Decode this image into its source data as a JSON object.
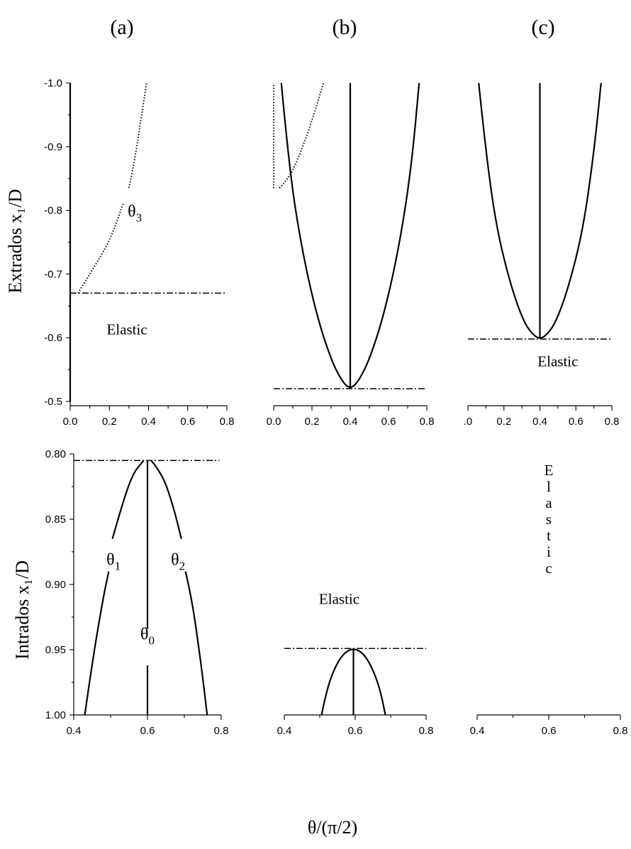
{
  "figure": {
    "xlabel": "θ/(π/2)",
    "ylabel_top": "Extrados   x₁/D",
    "ylabel_bottom": "Intrados   x₁/D"
  },
  "chart_data": [
    {
      "id": "a-top",
      "type": "line",
      "title": "(a)",
      "xlim": [
        0,
        0.8
      ],
      "xticks": [
        "0.0",
        "0.2",
        "0.4",
        "0.6",
        "0.8"
      ],
      "ylim": [
        -1.0,
        -0.5
      ],
      "yticks": [
        "-1.0",
        "-0.9",
        "-0.8",
        "-0.7",
        "-0.6",
        "-0.5"
      ],
      "show_y_axis": true,
      "annotations": [
        {
          "text": "θ",
          "sub": "3",
          "x": 0.33,
          "y": -0.79
        },
        {
          "text": "Elastic",
          "x": 0.29,
          "y": -0.605
        }
      ],
      "series": [
        {
          "style": "solid",
          "points": [
            [
              0,
              -1.0
            ],
            [
              0,
              -0.5
            ]
          ]
        },
        {
          "style": "dotted",
          "points": [
            [
              0,
              -0.67
            ],
            [
              0,
              -1.0
            ]
          ]
        },
        {
          "style": "dotted",
          "points": [
            [
              0.04,
              -0.67
            ],
            [
              0.1,
              -0.7
            ],
            [
              0.2,
              -0.75
            ],
            [
              0.27,
              -0.81
            ]
          ]
        },
        {
          "style": "dotted",
          "points": [
            [
              0.3,
              -0.835
            ],
            [
              0.33,
              -0.88
            ],
            [
              0.36,
              -0.94
            ],
            [
              0.39,
              -1.0
            ]
          ]
        },
        {
          "style": "dashdot",
          "points": [
            [
              0.0,
              -0.67
            ],
            [
              0.8,
              -0.67
            ]
          ]
        }
      ]
    },
    {
      "id": "b-top",
      "type": "line",
      "title": "(b)",
      "xlim": [
        0,
        0.8
      ],
      "xticks": [
        "0.0",
        "0.2",
        "0.4",
        "0.6",
        "0.8"
      ],
      "ylim": [
        -1.0,
        -0.5
      ],
      "yticks": [],
      "show_y_axis": false,
      "annotations": [],
      "series": [
        {
          "style": "solid",
          "points": [
            [
              0.04,
              -1.0
            ],
            [
              0.08,
              -0.87
            ],
            [
              0.14,
              -0.75
            ],
            [
              0.22,
              -0.64
            ],
            [
              0.3,
              -0.565
            ],
            [
              0.36,
              -0.53
            ],
            [
              0.4,
              -0.52
            ],
            [
              0.44,
              -0.53
            ],
            [
              0.5,
              -0.565
            ],
            [
              0.58,
              -0.64
            ],
            [
              0.66,
              -0.75
            ],
            [
              0.72,
              -0.87
            ],
            [
              0.76,
              -1.0
            ]
          ]
        },
        {
          "style": "solid",
          "points": [
            [
              0.4,
              -0.52
            ],
            [
              0.4,
              -1.0
            ]
          ]
        },
        {
          "style": "dotted",
          "points": [
            [
              0,
              -0.835
            ],
            [
              0,
              -1.0
            ]
          ]
        },
        {
          "style": "dotted",
          "points": [
            [
              0.03,
              -0.835
            ],
            [
              0.08,
              -0.85
            ],
            [
              0.14,
              -0.89
            ],
            [
              0.2,
              -0.94
            ],
            [
              0.26,
              -1.0
            ]
          ]
        },
        {
          "style": "dashdot",
          "points": [
            [
              0.0,
              -0.52
            ],
            [
              0.8,
              -0.52
            ]
          ]
        }
      ]
    },
    {
      "id": "c-top",
      "type": "line",
      "title": "(c)",
      "xlim": [
        0,
        0.8
      ],
      "xticks": [
        ".0",
        "0.2",
        "0.4",
        "0.6",
        "0.8"
      ],
      "ylim": [
        -1.0,
        -0.5
      ],
      "yticks": [],
      "show_y_axis": false,
      "annotations": [
        {
          "text": "Elastic",
          "x": 0.5,
          "y": -0.555
        }
      ],
      "series": [
        {
          "style": "solid",
          "points": [
            [
              0.06,
              -1.0
            ],
            [
              0.1,
              -0.89
            ],
            [
              0.16,
              -0.77
            ],
            [
              0.24,
              -0.68
            ],
            [
              0.31,
              -0.625
            ],
            [
              0.36,
              -0.605
            ],
            [
              0.4,
              -0.598
            ],
            [
              0.44,
              -0.605
            ],
            [
              0.49,
              -0.625
            ],
            [
              0.56,
              -0.68
            ],
            [
              0.64,
              -0.77
            ],
            [
              0.7,
              -0.89
            ],
            [
              0.74,
              -1.0
            ]
          ]
        },
        {
          "style": "solid",
          "points": [
            [
              0.4,
              -0.598
            ],
            [
              0.4,
              -1.0
            ]
          ]
        },
        {
          "style": "dashdot",
          "points": [
            [
              0.0,
              -0.598
            ],
            [
              0.8,
              -0.598
            ]
          ]
        }
      ]
    },
    {
      "id": "a-bottom",
      "type": "line",
      "title": "",
      "xlim": [
        0.4,
        0.8
      ],
      "xticks": [
        "0.4",
        "0.6",
        "0.8"
      ],
      "ylim": [
        0.8,
        1.0
      ],
      "yticks": [
        "0.80",
        "0.85",
        "0.90",
        "0.95",
        "1.00"
      ],
      "show_y_axis": true,
      "annotations": [
        {
          "text": "θ",
          "sub": "1",
          "x": 0.508,
          "y": 0.885
        },
        {
          "text": "θ",
          "sub": "2",
          "x": 0.683,
          "y": 0.885
        },
        {
          "text": "θ",
          "sub": "0",
          "x": 0.6,
          "y": 0.942
        }
      ],
      "series": [
        {
          "style": "solid",
          "points": [
            [
              0.43,
              1.0
            ],
            [
              0.45,
              0.96
            ],
            [
              0.48,
              0.91
            ],
            [
              0.495,
              0.89
            ]
          ]
        },
        {
          "style": "solid",
          "points": [
            [
              0.505,
              0.865
            ],
            [
              0.53,
              0.84
            ],
            [
              0.56,
              0.815
            ],
            [
              0.59,
              0.805
            ]
          ]
        },
        {
          "style": "solid",
          "points": [
            [
              0.61,
              0.805
            ],
            [
              0.64,
              0.815
            ],
            [
              0.67,
              0.84
            ],
            [
              0.692,
              0.865
            ]
          ]
        },
        {
          "style": "solid",
          "points": [
            [
              0.703,
              0.89
            ],
            [
              0.72,
              0.91
            ],
            [
              0.745,
              0.96
            ],
            [
              0.762,
              1.0
            ]
          ]
        },
        {
          "style": "solid",
          "points": [
            [
              0.6,
              0.805
            ],
            [
              0.6,
              0.934
            ]
          ]
        },
        {
          "style": "solid",
          "points": [
            [
              0.6,
              0.962
            ],
            [
              0.6,
              1.0
            ]
          ]
        },
        {
          "style": "dashdot",
          "points": [
            [
              0.4,
              0.805
            ],
            [
              0.795,
              0.805
            ]
          ]
        }
      ]
    },
    {
      "id": "b-bottom",
      "type": "line",
      "title": "",
      "xlim": [
        0.4,
        0.8
      ],
      "xticks": [
        "0.4",
        "0.6",
        "0.8"
      ],
      "ylim": [
        0.8,
        1.0
      ],
      "yticks": [],
      "show_y_axis": false,
      "annotations": [
        {
          "text": "Elastic",
          "x": 0.555,
          "y": 0.915
        }
      ],
      "series": [
        {
          "style": "solid",
          "points": [
            [
              0.505,
              1.0
            ],
            [
              0.52,
              0.98
            ],
            [
              0.545,
              0.962
            ],
            [
              0.57,
              0.952
            ],
            [
              0.595,
              0.949
            ],
            [
              0.62,
              0.952
            ],
            [
              0.645,
              0.962
            ],
            [
              0.67,
              0.98
            ],
            [
              0.685,
              1.0
            ]
          ]
        },
        {
          "style": "solid",
          "points": [
            [
              0.595,
              0.949
            ],
            [
              0.595,
              1.0
            ]
          ]
        },
        {
          "style": "dashdot",
          "points": [
            [
              0.4,
              0.949
            ],
            [
              0.8,
              0.949
            ]
          ]
        }
      ]
    },
    {
      "id": "c-bottom",
      "type": "line",
      "title": "",
      "xlim": [
        0.4,
        0.8
      ],
      "xticks": [
        "0.4",
        "0.6",
        "0.8"
      ],
      "ylim": [
        0.8,
        1.0
      ],
      "yticks": [],
      "show_y_axis": false,
      "annotations": [
        {
          "text": "Elastic",
          "x": 0.6,
          "y": 0.86,
          "vertical": true
        }
      ],
      "series": []
    }
  ]
}
